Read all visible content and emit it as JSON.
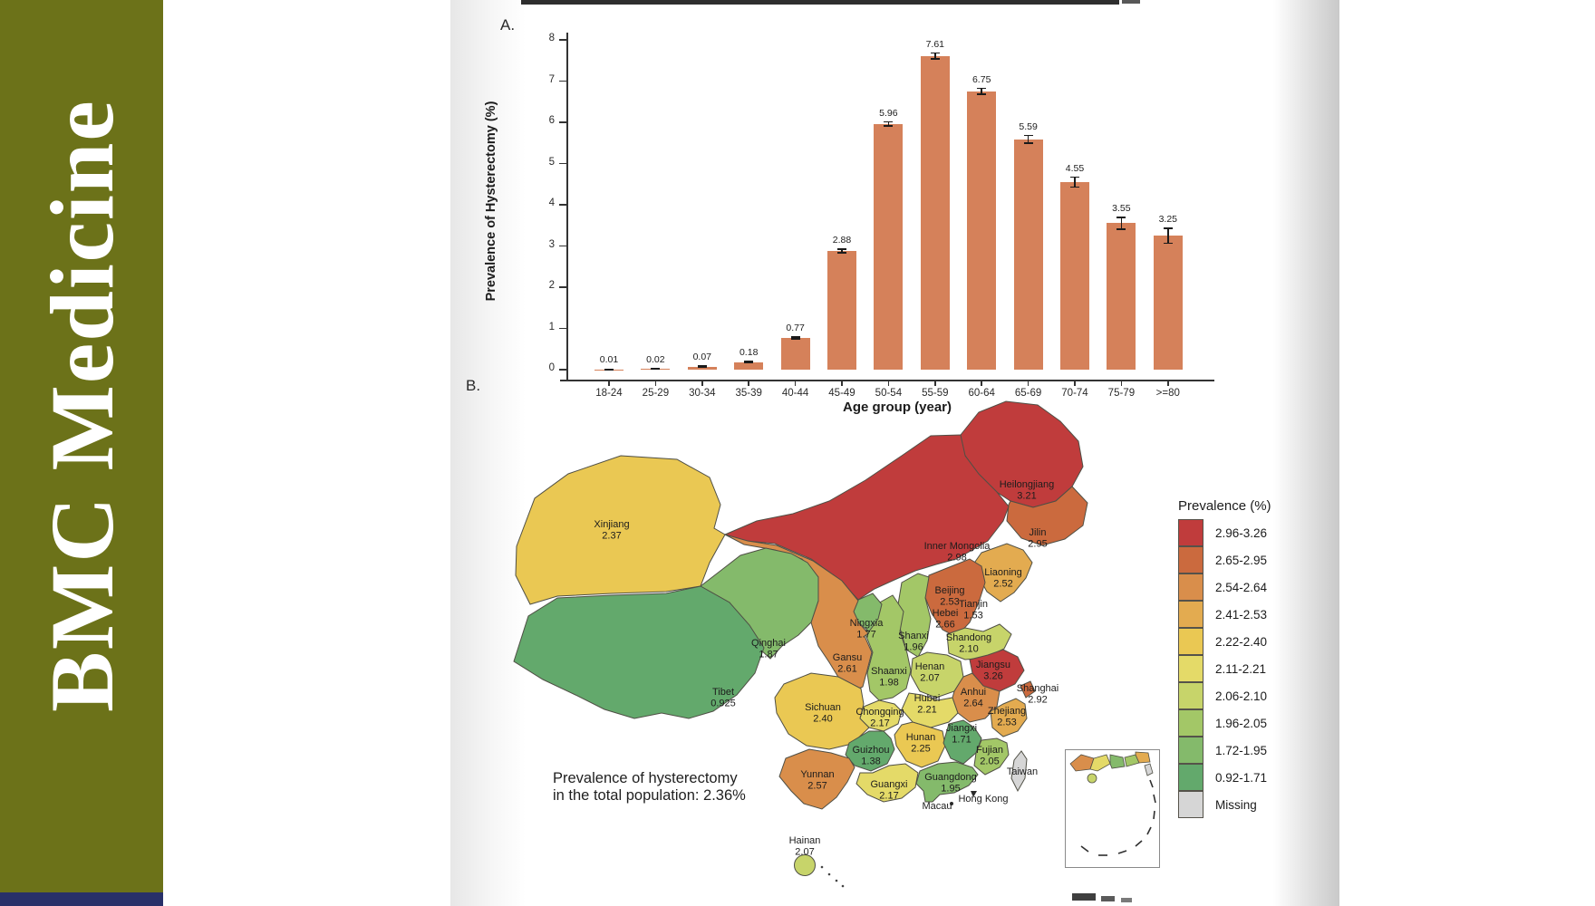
{
  "sidebar": {
    "journal_title": "BMC Medicine",
    "background_color": "#6c7219",
    "footer_bar_color": "#283069"
  },
  "figure": {
    "panelA_label": "A.",
    "panelB_label": "B."
  },
  "chart_data": [
    {
      "type": "bar",
      "panel": "A",
      "xlabel": "Age group (year)",
      "ylabel": "Prevalence of Hysterectomy (%)",
      "ylim": [
        0,
        8
      ],
      "yticks": [
        0,
        1,
        2,
        3,
        4,
        5,
        6,
        7,
        8
      ],
      "grid": false,
      "bar_color": "#d5815a",
      "categories": [
        "18-24",
        "25-29",
        "30-34",
        "35-39",
        "40-44",
        "45-49",
        "50-54",
        "55-59",
        "60-64",
        "65-69",
        "70-74",
        "75-79",
        ">=80"
      ],
      "values": [
        0.01,
        0.02,
        0.07,
        0.18,
        0.77,
        2.88,
        5.96,
        7.61,
        6.75,
        5.59,
        4.55,
        3.55,
        3.25
      ],
      "value_labels": [
        "0.01",
        "0.02",
        "0.07",
        "0.18",
        "0.77",
        "2.88",
        "5.96",
        "7.61",
        "6.75",
        "5.59",
        "4.55",
        "3.55",
        "3.25"
      ],
      "errors": [
        0.005,
        0.005,
        0.015,
        0.02,
        0.025,
        0.04,
        0.05,
        0.07,
        0.07,
        0.09,
        0.12,
        0.14,
        0.18
      ]
    },
    {
      "type": "choropleth",
      "panel": "B",
      "region": "China",
      "annotation": "Prevalence of hysterectomy\nin the total population: 2.36%",
      "legend_title": "Prevalence (%)",
      "legend_position": "right",
      "legend": [
        {
          "label": "2.96-3.26",
          "min": 2.96,
          "max": 3.26,
          "color": "#c03c3c"
        },
        {
          "label": "2.65-2.95",
          "min": 2.65,
          "max": 2.95,
          "color": "#cb6a3e"
        },
        {
          "label": "2.54-2.64",
          "min": 2.54,
          "max": 2.64,
          "color": "#d98e4b"
        },
        {
          "label": "2.41-2.53",
          "min": 2.41,
          "max": 2.53,
          "color": "#e3ab50"
        },
        {
          "label": "2.22-2.40",
          "min": 2.22,
          "max": 2.4,
          "color": "#eac853"
        },
        {
          "label": "2.11-2.21",
          "min": 2.11,
          "max": 2.21,
          "color": "#e4da68"
        },
        {
          "label": "2.06-2.10",
          "min": 2.06,
          "max": 2.1,
          "color": "#c7d46a"
        },
        {
          "label": "1.96-2.05",
          "min": 1.96,
          "max": 2.05,
          "color": "#a3c767"
        },
        {
          "label": "1.72-1.95",
          "min": 1.72,
          "max": 1.95,
          "color": "#84ba6b"
        },
        {
          "label": "0.92-1.71",
          "min": 0.92,
          "max": 1.71,
          "color": "#63a96c"
        },
        {
          "label": "Missing",
          "min": null,
          "max": null,
          "color": "#d6d6d6"
        }
      ],
      "provinces": [
        {
          "name": "Heilongjiang",
          "value": "3.21"
        },
        {
          "name": "Jilin",
          "value": "2.95"
        },
        {
          "name": "Liaoning",
          "value": "2.52"
        },
        {
          "name": "Inner Mongolia",
          "value": "2.98"
        },
        {
          "name": "Beijing",
          "value": "2.53"
        },
        {
          "name": "Tianjin",
          "value": "1.53"
        },
        {
          "name": "Hebei",
          "value": "2.66"
        },
        {
          "name": "Shanxi",
          "value": "1.96"
        },
        {
          "name": "Shandong",
          "value": "2.10"
        },
        {
          "name": "Henan",
          "value": "2.07"
        },
        {
          "name": "Shaanxi",
          "value": "1.98"
        },
        {
          "name": "Ningxia",
          "value": "1.77"
        },
        {
          "name": "Gansu",
          "value": "2.61"
        },
        {
          "name": "Qinghai",
          "value": "1.87"
        },
        {
          "name": "Xinjiang",
          "value": "2.37"
        },
        {
          "name": "Tibet",
          "value": "0.925"
        },
        {
          "name": "Sichuan",
          "value": "2.40"
        },
        {
          "name": "Chongqing",
          "value": "2.17"
        },
        {
          "name": "Hubei",
          "value": "2.21"
        },
        {
          "name": "Anhui",
          "value": "2.64"
        },
        {
          "name": "Jiangsu",
          "value": "3.26"
        },
        {
          "name": "Shanghai",
          "value": "2.92"
        },
        {
          "name": "Zhejiang",
          "value": "2.53"
        },
        {
          "name": "Hunan",
          "value": "2.25"
        },
        {
          "name": "Jiangxi",
          "value": "1.71"
        },
        {
          "name": "Fujian",
          "value": "2.05"
        },
        {
          "name": "Guizhou",
          "value": "1.38"
        },
        {
          "name": "Yunnan",
          "value": "2.57"
        },
        {
          "name": "Guangxi",
          "value": "2.17"
        },
        {
          "name": "Guangdong",
          "value": "1.95"
        },
        {
          "name": "Hainan",
          "value": "2.07"
        }
      ],
      "missing_regions": [
        "Taiwan"
      ],
      "city_markers": [
        "Hong Kong",
        "Macau"
      ]
    }
  ]
}
